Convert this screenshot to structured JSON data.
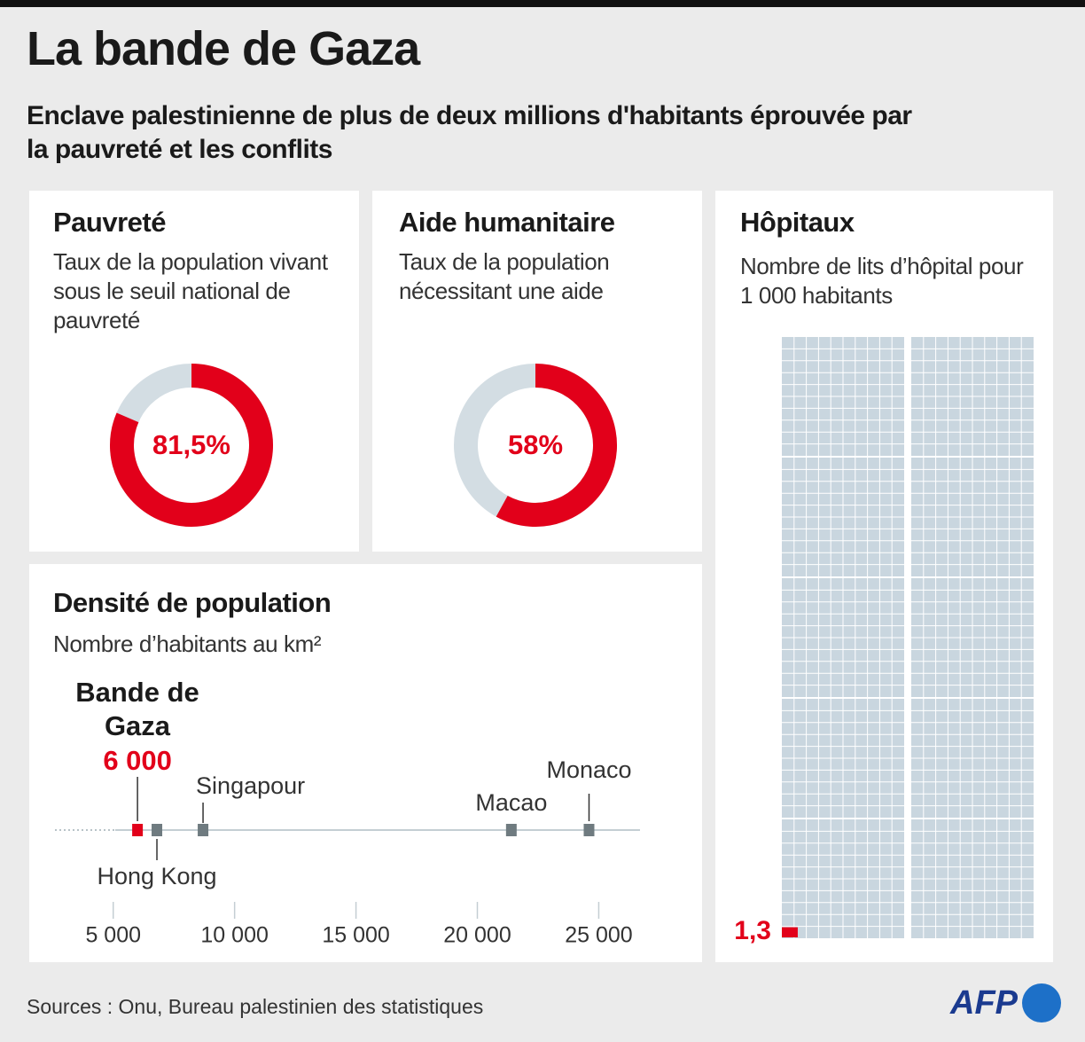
{
  "title": "La bande de Gaza",
  "subtitle": "Enclave palestinienne de plus de deux millions d'habitants éprouvée par la pauvreté et les conflits",
  "source": "Sources : Onu, Bureau palestinien des statistiques",
  "logo": "AFP",
  "chart_data": [
    {
      "type": "donut",
      "title": "Pauvreté",
      "subtitle": "Taux de la population vivant sous le seuil national de pauvreté",
      "values": [
        81.5
      ],
      "value_labels": [
        "81,5%"
      ],
      "ylim": [
        0,
        100
      ],
      "color": "#e2001a",
      "track_color": "#d3dde3"
    },
    {
      "type": "donut",
      "title": "Aide humanitaire",
      "subtitle": "Taux de la population nécessitant une aide",
      "values": [
        58
      ],
      "value_labels": [
        "58%"
      ],
      "ylim": [
        0,
        100
      ],
      "color": "#e2001a",
      "track_color": "#d3dde3"
    },
    {
      "type": "waffle",
      "title": "Hôpitaux",
      "subtitle": "Nombre de lits d’hôpital pour 1 000 habitants",
      "values": [
        1.3
      ],
      "value_labels": [
        "1,3"
      ],
      "ylim": [
        0,
        1000
      ],
      "color": "#e2001a",
      "track_color": "#c9d6df"
    },
    {
      "type": "dot",
      "title": "Densité de population",
      "subtitle": "Nombre d’habitants au km²",
      "categories": [
        "Bande de Gaza",
        "Hong Kong",
        "Singapour",
        "Macao",
        "Monaco"
      ],
      "values": [
        6000,
        6800,
        8700,
        21400,
        24600
      ],
      "value_labels": [
        "6 000",
        null,
        null,
        null,
        null
      ],
      "colors": [
        "#e2001a",
        "#6f7b80",
        "#6f7b80",
        "#6f7b80",
        "#6f7b80"
      ],
      "xlim": [
        2600,
        26700
      ],
      "xticks": [
        {
          "value": 5000,
          "label": "5 000"
        },
        {
          "value": 10000,
          "label": "10 000"
        },
        {
          "value": 15000,
          "label": "15 000"
        },
        {
          "value": 20000,
          "label": "20 000"
        },
        {
          "value": 25000,
          "label": "25 000"
        }
      ]
    }
  ]
}
